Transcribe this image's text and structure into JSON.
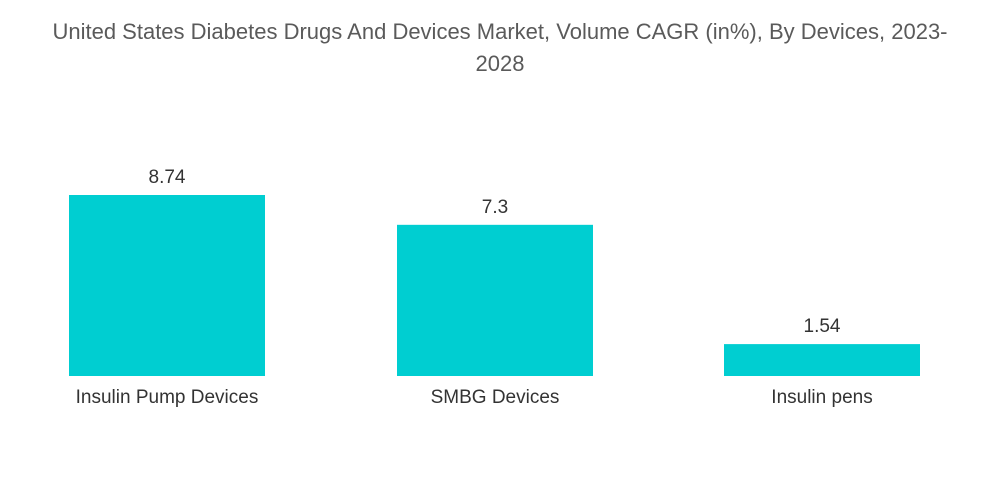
{
  "chart_data": {
    "type": "bar",
    "title": "United States Diabetes Drugs And Devices Market, Volume CAGR (in%), By Devices, 2023-2028",
    "categories": [
      "Insulin Pump Devices",
      "SMBG Devices",
      "Insulin pens"
    ],
    "values": [
      8.74,
      7.3,
      1.54
    ],
    "value_labels": [
      "8.74",
      "7.3",
      "1.54"
    ],
    "xlabel": "",
    "ylabel": "",
    "ylim": [
      0,
      8.74
    ],
    "grid": false,
    "legend": "none",
    "bar_color": "#00CED1"
  }
}
